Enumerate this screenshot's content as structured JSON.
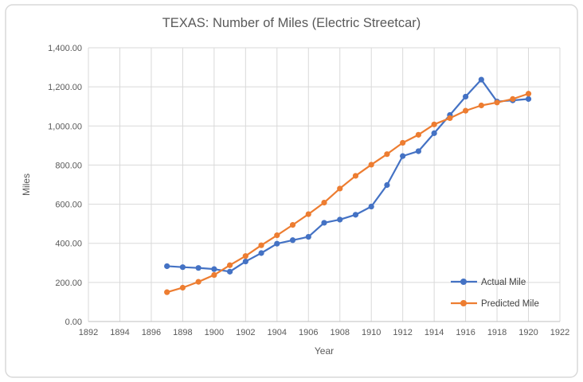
{
  "chart_data": {
    "type": "line",
    "title": "TEXAS: Number of Miles (Electric Streetcar)",
    "xlabel": "Year",
    "ylabel": "Miles",
    "xlim": [
      1892,
      1922
    ],
    "ylim": [
      0,
      1400
    ],
    "x_ticks": [
      1892,
      1894,
      1896,
      1898,
      1900,
      1902,
      1904,
      1906,
      1908,
      1910,
      1912,
      1914,
      1916,
      1918,
      1920,
      1922
    ],
    "y_ticks": [
      0,
      200,
      400,
      600,
      800,
      1000,
      1200,
      1400
    ],
    "y_tick_labels": [
      "0.00",
      "200.00",
      "400.00",
      "600.00",
      "800.00",
      "1,000.00",
      "1,200.00",
      "1,400.00"
    ],
    "grid": "both",
    "gridline_color": "#d9d9d9",
    "legend_position": "inside-bottom-right",
    "x": [
      1897,
      1898,
      1899,
      1900,
      1901,
      1902,
      1903,
      1904,
      1905,
      1906,
      1907,
      1908,
      1909,
      1910,
      1911,
      1912,
      1913,
      1914,
      1915,
      1916,
      1917,
      1918,
      1919,
      1920
    ],
    "series": [
      {
        "name": "Actual Mile",
        "color": "#4472c4",
        "marker": "circle",
        "values": [
          283,
          278,
          274,
          268,
          255,
          307,
          350,
          398,
          416,
          433,
          505,
          521,
          546,
          588,
          698,
          846,
          871,
          963,
          1056,
          1150,
          1237,
          1125,
          1131,
          1138
        ]
      },
      {
        "name": "Predicted Mile",
        "color": "#ed7d31",
        "marker": "circle",
        "values": [
          150,
          173,
          203,
          238,
          288,
          335,
          390,
          441,
          494,
          549,
          608,
          680,
          745,
          802,
          856,
          914,
          955,
          1008,
          1040,
          1078,
          1105,
          1120,
          1138,
          1165
        ]
      }
    ]
  }
}
